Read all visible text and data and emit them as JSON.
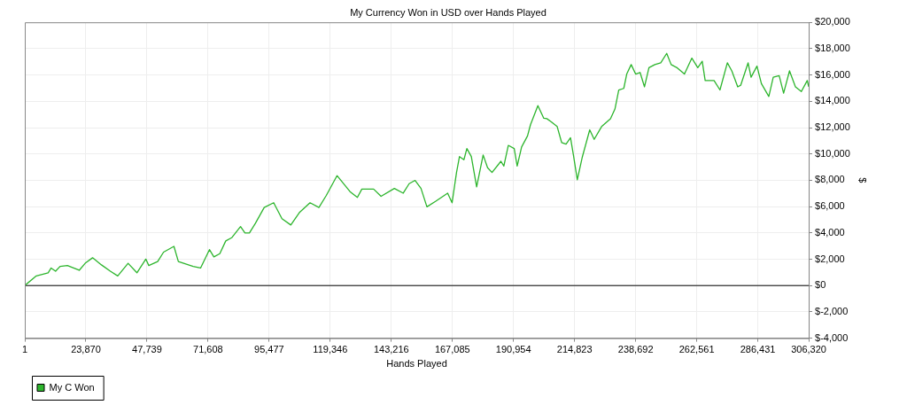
{
  "chart_data": {
    "type": "line",
    "title": "My Currency Won in USD over Hands Played",
    "xlabel": "Hands Played",
    "ylabel": "$",
    "xlim": [
      1,
      306320
    ],
    "xticks": [
      1,
      {
        "value": 23870,
        "label": "23,870"
      },
      {
        "value": 47739,
        "label": "47,739"
      },
      {
        "value": 71608,
        "label": "71,608"
      },
      {
        "value": 95477,
        "label": "95,477"
      },
      {
        "value": 119346,
        "label": "119,346"
      },
      {
        "value": 143216,
        "label": "143,216"
      },
      {
        "value": 167085,
        "label": "167,085"
      },
      {
        "value": 190954,
        "label": "190,954"
      },
      {
        "value": 214823,
        "label": "214,823"
      },
      {
        "value": 238692,
        "label": "238,692"
      },
      {
        "value": 262561,
        "label": "262,561"
      },
      {
        "value": 286431,
        "label": "286,431"
      },
      {
        "value": 306320,
        "label": "306,320"
      }
    ],
    "ylim": [
      -4000,
      20000
    ],
    "yticks": [
      {
        "value": -4000,
        "label": "$-4,000"
      },
      {
        "value": -2000,
        "label": "$-2,000"
      },
      {
        "value": 0,
        "label": "$0"
      },
      {
        "value": 2000,
        "label": "$2,000"
      },
      {
        "value": 4000,
        "label": "$4,000"
      },
      {
        "value": 6000,
        "label": "$6,000"
      },
      {
        "value": 8000,
        "label": "$8,000"
      },
      {
        "value": 10000,
        "label": "$10,000"
      },
      {
        "value": 12000,
        "label": "$12,000"
      },
      {
        "value": 14000,
        "label": "$14,000"
      },
      {
        "value": 16000,
        "label": "$16,000"
      },
      {
        "value": 18000,
        "label": "$18,000"
      },
      {
        "value": 20000,
        "label": "$20,000"
      }
    ],
    "grid": true,
    "legend": "bottom left",
    "marker": "none",
    "line_style": "solid",
    "ref_lines": [
      {
        "axis": "y",
        "value": 0,
        "color": "#000000"
      }
    ],
    "series": [
      {
        "name": "My C Won",
        "color": "#2db52d",
        "x": [
          1,
          4510,
          9120,
          10290,
          12030,
          13770,
          16650,
          21270,
          23590,
          26480,
          29950,
          33420,
          36310,
          40360,
          43820,
          47290,
          48450,
          51920,
          54230,
          58280,
          60010,
          65790,
          68680,
          72150,
          73890,
          76200,
          78520,
          80830,
          84300,
          86030,
          87770,
          90080,
          93550,
          97250,
          100480,
          103950,
          107420,
          111460,
          114930,
          117820,
          122000,
          127070,
          129960,
          131700,
          136320,
          139210,
          144410,
          147880,
          150190,
          152510,
          154820,
          157130,
          160600,
          165230,
          166960,
          168700,
          169860,
          171590,
          172740,
          174480,
          176560,
          179100,
          180830,
          182570,
          186040,
          187190,
          188930,
          191240,
          192400,
          194130,
          196440,
          197600,
          200490,
          202800,
          203980,
          205720,
          208030,
          209770,
          211500,
          213240,
          214390,
          215890,
          217870,
          220750,
          222490,
          225390,
          228860,
          230600,
          232090,
          234060,
          235210,
          236950,
          238680,
          240420,
          242150,
          243890,
          246200,
          248510,
          250830,
          252560,
          254880,
          257770,
          260660,
          262970,
          264710,
          265860,
          269330,
          271640,
          274530,
          276270,
          278580,
          279740,
          282630,
          283790,
          286100,
          287840,
          290730,
          292460,
          294780,
          296510,
          298820,
          301130,
          303440,
          305750,
          306320
        ],
        "values": [
          0,
          730,
          970,
          1330,
          1090,
          1450,
          1520,
          1160,
          1690,
          2110,
          1570,
          1090,
          730,
          1690,
          970,
          2010,
          1520,
          1820,
          2540,
          2980,
          1820,
          1450,
          1330,
          2730,
          2180,
          2420,
          3390,
          3630,
          4480,
          3990,
          3990,
          4720,
          5930,
          6290,
          5080,
          4600,
          5570,
          6290,
          5930,
          6850,
          8350,
          7140,
          6700,
          7330,
          7330,
          6780,
          7380,
          7020,
          7740,
          7990,
          7380,
          5980,
          6410,
          7020,
          6290,
          8590,
          9800,
          9560,
          10410,
          9800,
          7500,
          9920,
          8950,
          8590,
          9440,
          9080,
          10650,
          10410,
          9080,
          10530,
          11370,
          12220,
          13670,
          12710,
          12680,
          12440,
          12080,
          10870,
          10740,
          11230,
          9900,
          8030,
          9780,
          11830,
          11110,
          12080,
          12680,
          13410,
          14860,
          14980,
          16070,
          16790,
          16070,
          16190,
          15100,
          16550,
          16790,
          16920,
          17640,
          16790,
          16550,
          16070,
          17280,
          16550,
          17040,
          15580,
          15580,
          14860,
          16920,
          16310,
          15100,
          15220,
          16920,
          15830,
          16670,
          15340,
          14370,
          15830,
          15950,
          14620,
          16310,
          15100,
          14740,
          15580,
          15100
        ]
      }
    ]
  }
}
